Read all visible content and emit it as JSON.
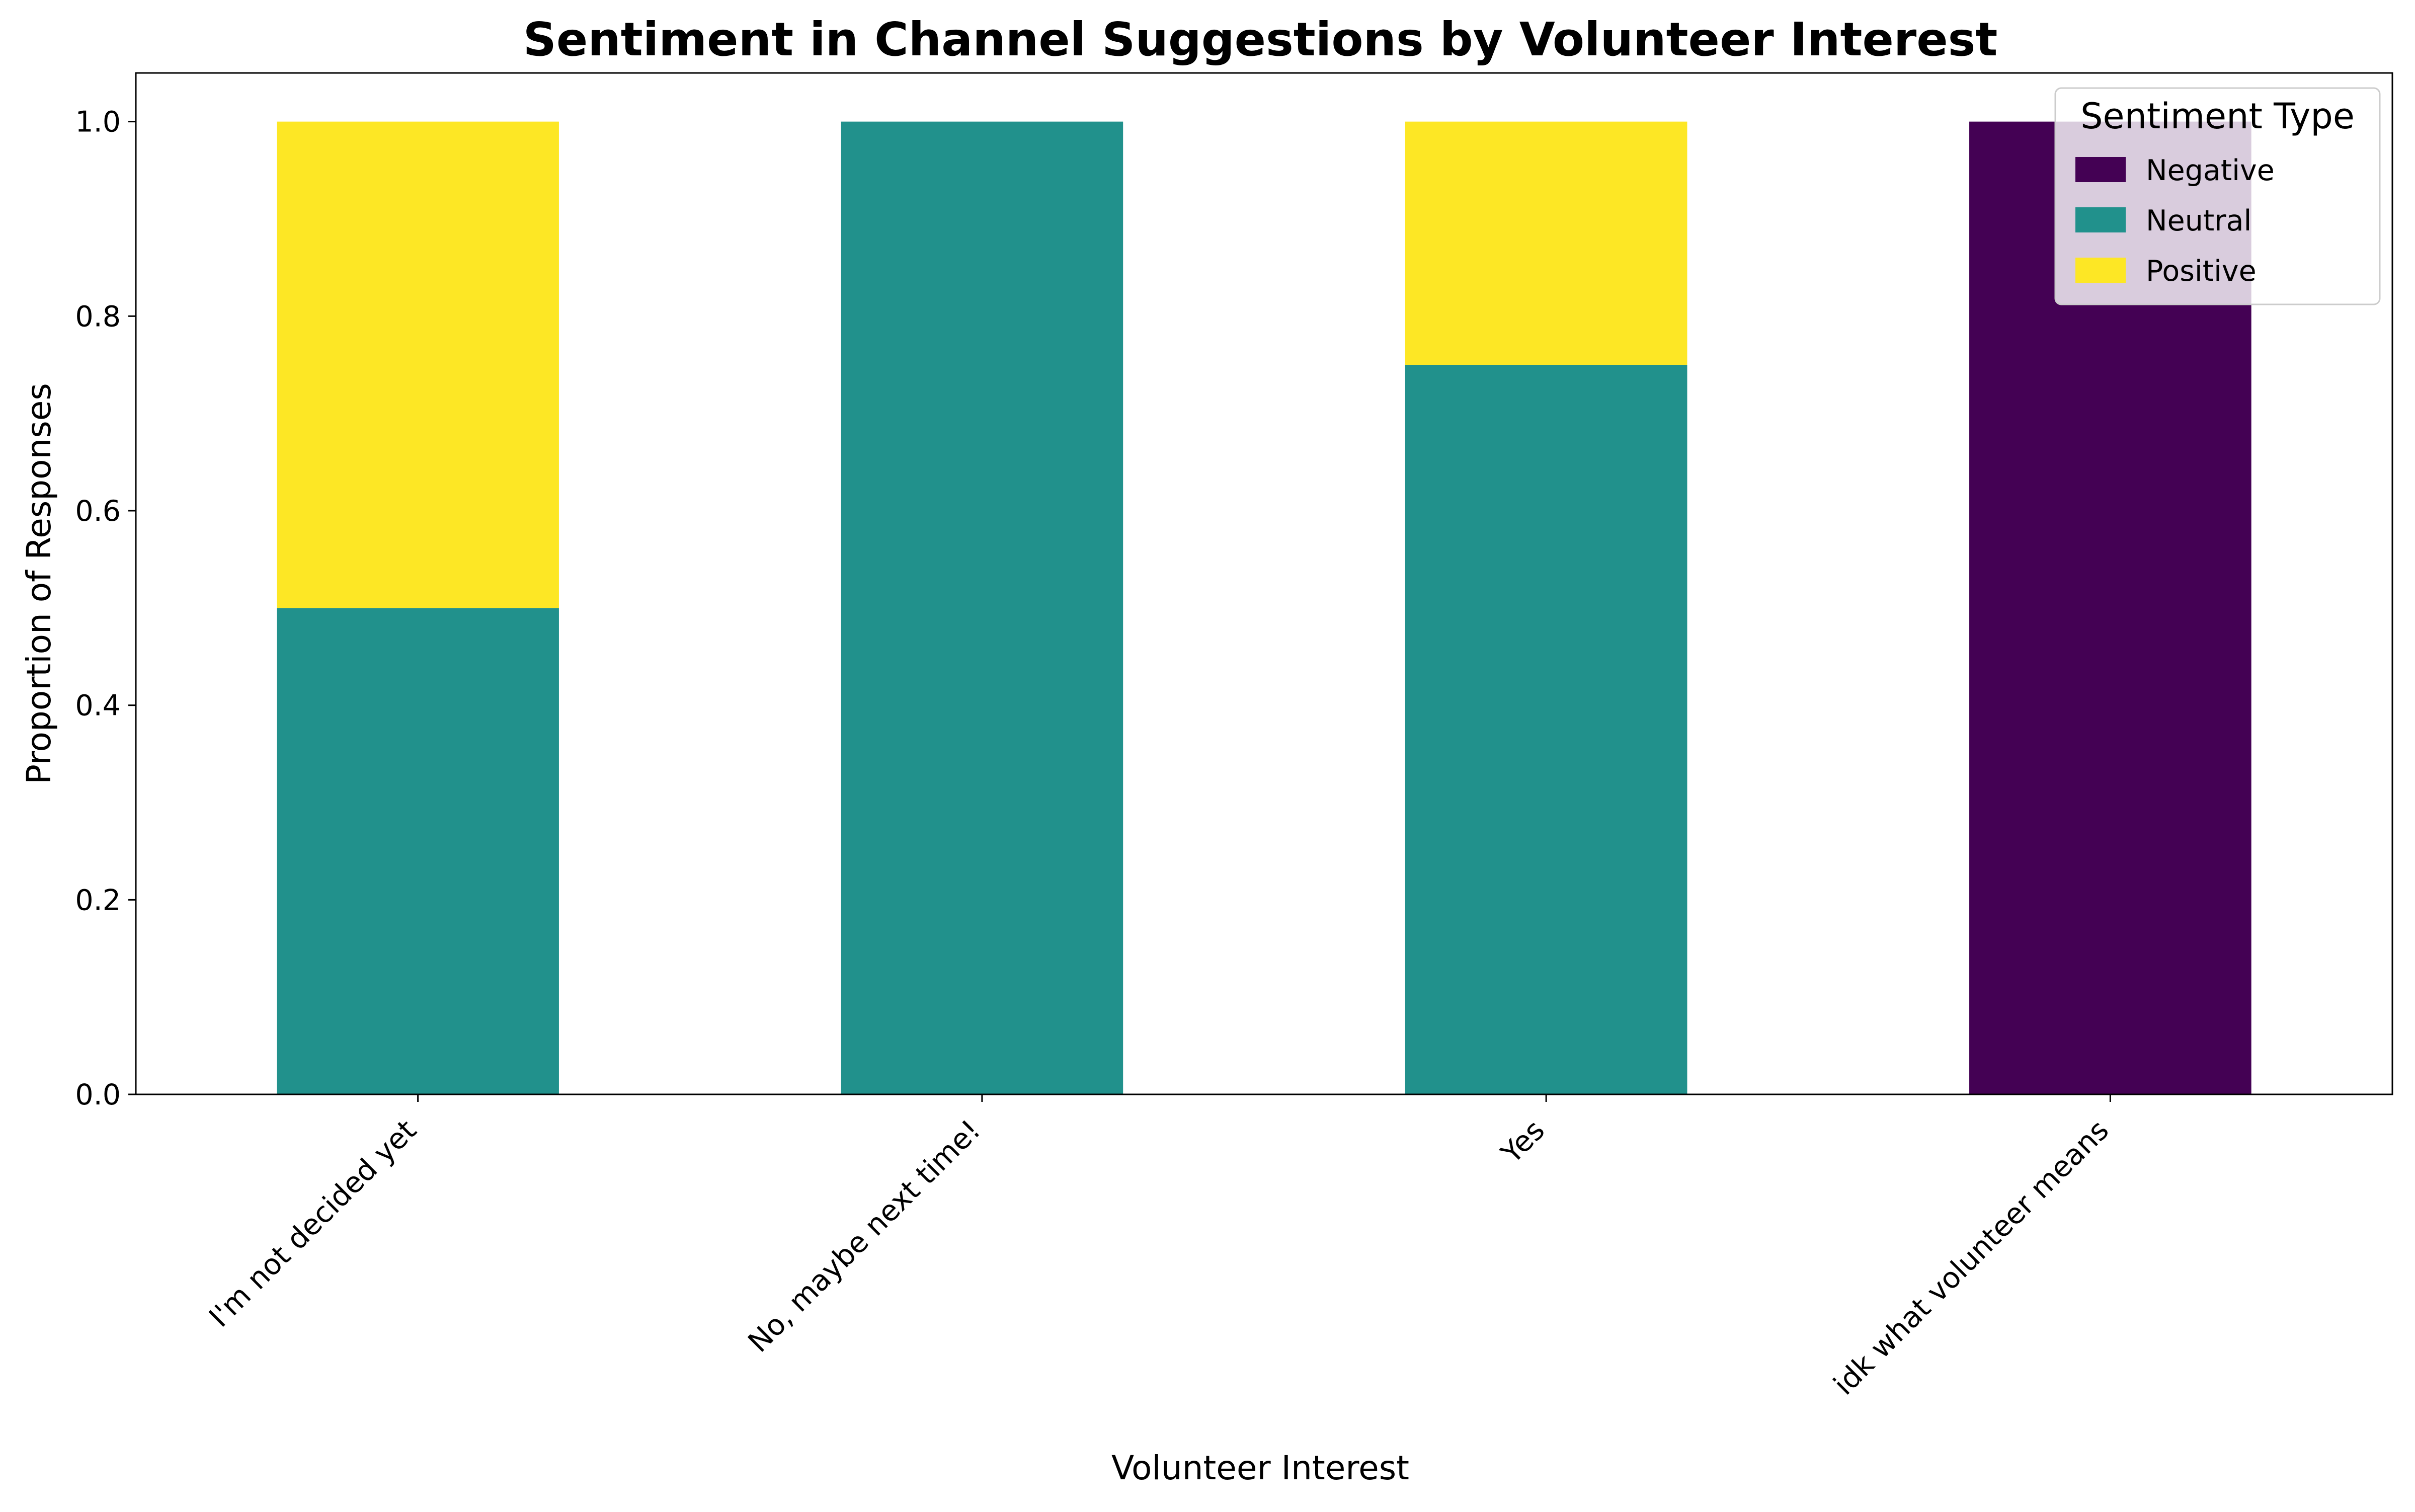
{
  "chart_data": {
    "type": "bar",
    "stacked": true,
    "title": "Sentiment in Channel Suggestions by Volunteer Interest",
    "xlabel": "Volunteer Interest",
    "ylabel": "Proportion of Responses",
    "categories": [
      "I'm not decided yet",
      "No, maybe next time!",
      "Yes",
      "idk what volunteer means"
    ],
    "series": [
      {
        "name": "Negative",
        "color": "#440154",
        "values": [
          0,
          0,
          0,
          1.0
        ]
      },
      {
        "name": "Neutral",
        "color": "#21918c",
        "values": [
          0.5,
          1.0,
          0.75,
          0
        ]
      },
      {
        "name": "Positive",
        "color": "#fde725",
        "values": [
          0.5,
          0,
          0.25,
          0
        ]
      }
    ],
    "ylim": [
      0,
      1.05
    ],
    "yticks": [
      0.0,
      0.2,
      0.4,
      0.6,
      0.8,
      1.0
    ],
    "ytick_labels": [
      "0.0",
      "0.2",
      "0.4",
      "0.6",
      "0.8",
      "1.0"
    ],
    "grid": false,
    "legend": {
      "title": "Sentiment Type",
      "placement": "top-right"
    }
  }
}
